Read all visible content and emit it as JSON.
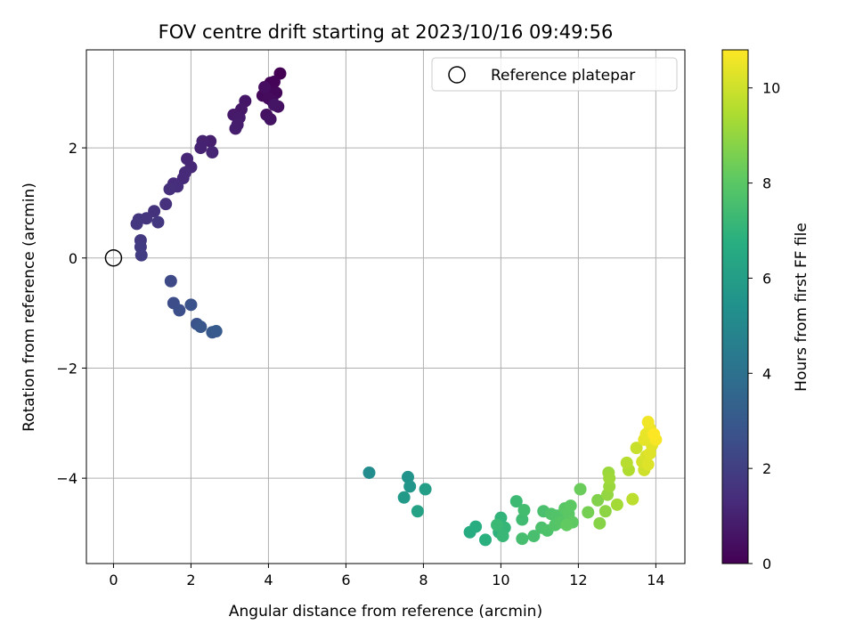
{
  "chart_data": {
    "type": "scatter",
    "title": "FOV centre drift starting at 2023/10/16 09:49:56",
    "xlabel": "Angular distance from reference (arcmin)",
    "ylabel": "Rotation from reference (arcmin)",
    "xlim": [
      -0.7,
      14.75
    ],
    "ylim": [
      -5.55,
      3.78
    ],
    "xticks": [
      0,
      2,
      4,
      6,
      8,
      10,
      12,
      14
    ],
    "yticks": [
      -4,
      -2,
      0,
      2
    ],
    "grid": true,
    "legend": {
      "placement": "top-right",
      "entries": [
        "Reference platepar"
      ]
    },
    "colorbar": {
      "label": "Hours from first FF file",
      "range": [
        0,
        10.8
      ],
      "ticks": [
        0,
        2,
        4,
        6,
        8,
        10
      ],
      "colormap": "viridis"
    },
    "reference_point": {
      "x": 0,
      "y": 0
    },
    "series": [
      {
        "values": [
          {
            "x": 4.3,
            "y": 3.35,
            "c": 0.0
          },
          {
            "x": 4.05,
            "y": 3.18,
            "c": 0.05
          },
          {
            "x": 4.15,
            "y": 3.2,
            "c": 0.1
          },
          {
            "x": 3.95,
            "y": 3.05,
            "c": 0.15
          },
          {
            "x": 4.2,
            "y": 3.0,
            "c": 0.2
          },
          {
            "x": 3.85,
            "y": 2.95,
            "c": 0.25
          },
          {
            "x": 4.0,
            "y": 2.9,
            "c": 0.3
          },
          {
            "x": 4.1,
            "y": 2.85,
            "c": 0.35
          },
          {
            "x": 3.9,
            "y": 3.1,
            "c": 0.4
          },
          {
            "x": 4.25,
            "y": 2.75,
            "c": 0.45
          },
          {
            "x": 3.95,
            "y": 2.6,
            "c": 0.5
          },
          {
            "x": 4.05,
            "y": 2.52,
            "c": 0.55
          },
          {
            "x": 4.15,
            "y": 2.78,
            "c": 0.6
          },
          {
            "x": 3.4,
            "y": 2.85,
            "c": 0.65
          },
          {
            "x": 3.3,
            "y": 2.7,
            "c": 0.7
          },
          {
            "x": 3.1,
            "y": 2.6,
            "c": 0.75
          },
          {
            "x": 3.25,
            "y": 2.55,
            "c": 0.8
          },
          {
            "x": 3.2,
            "y": 2.42,
            "c": 0.85
          },
          {
            "x": 3.15,
            "y": 2.35,
            "c": 0.9
          },
          {
            "x": 2.5,
            "y": 2.12,
            "c": 0.95
          },
          {
            "x": 2.3,
            "y": 2.12,
            "c": 1.0
          },
          {
            "x": 2.25,
            "y": 2.0,
            "c": 1.05
          },
          {
            "x": 2.55,
            "y": 1.92,
            "c": 1.1
          },
          {
            "x": 1.9,
            "y": 1.8,
            "c": 1.15
          },
          {
            "x": 2.0,
            "y": 1.65,
            "c": 1.2
          },
          {
            "x": 1.85,
            "y": 1.55,
            "c": 1.25
          },
          {
            "x": 1.8,
            "y": 1.45,
            "c": 1.3
          },
          {
            "x": 1.55,
            "y": 1.35,
            "c": 1.35
          },
          {
            "x": 1.65,
            "y": 1.3,
            "c": 1.4
          },
          {
            "x": 1.45,
            "y": 1.25,
            "c": 1.45
          },
          {
            "x": 1.35,
            "y": 0.98,
            "c": 1.5
          },
          {
            "x": 1.05,
            "y": 0.85,
            "c": 1.55
          },
          {
            "x": 0.85,
            "y": 0.72,
            "c": 1.6
          },
          {
            "x": 0.65,
            "y": 0.7,
            "c": 1.65
          },
          {
            "x": 0.6,
            "y": 0.62,
            "c": 1.7
          },
          {
            "x": 1.15,
            "y": 0.65,
            "c": 1.75
          },
          {
            "x": 0.7,
            "y": 0.32,
            "c": 1.8
          },
          {
            "x": 0.7,
            "y": 0.2,
            "c": 1.85
          },
          {
            "x": 0.72,
            "y": 0.05,
            "c": 1.9
          },
          {
            "x": 1.48,
            "y": -0.42,
            "c": 2.4
          },
          {
            "x": 1.55,
            "y": -0.82,
            "c": 2.5
          },
          {
            "x": 1.7,
            "y": -0.95,
            "c": 2.6
          },
          {
            "x": 2.0,
            "y": -0.85,
            "c": 2.7
          },
          {
            "x": 2.15,
            "y": -1.2,
            "c": 2.8
          },
          {
            "x": 2.25,
            "y": -1.25,
            "c": 2.9
          },
          {
            "x": 2.55,
            "y": -1.35,
            "c": 3.0
          },
          {
            "x": 2.65,
            "y": -1.33,
            "c": 3.1
          },
          {
            "x": 6.6,
            "y": -3.9,
            "c": 5.2
          },
          {
            "x": 7.6,
            "y": -3.98,
            "c": 5.5
          },
          {
            "x": 7.65,
            "y": -4.15,
            "c": 5.6
          },
          {
            "x": 7.5,
            "y": -4.35,
            "c": 5.8
          },
          {
            "x": 8.05,
            "y": -4.2,
            "c": 6.0
          },
          {
            "x": 7.85,
            "y": -4.6,
            "c": 6.2
          },
          {
            "x": 9.2,
            "y": -4.98,
            "c": 6.6
          },
          {
            "x": 9.35,
            "y": -4.88,
            "c": 6.7
          },
          {
            "x": 9.6,
            "y": -5.12,
            "c": 6.8
          },
          {
            "x": 9.95,
            "y": -4.98,
            "c": 6.9
          },
          {
            "x": 10.0,
            "y": -4.72,
            "c": 7.0
          },
          {
            "x": 10.1,
            "y": -4.9,
            "c": 7.1
          },
          {
            "x": 10.05,
            "y": -5.05,
            "c": 7.2
          },
          {
            "x": 9.9,
            "y": -4.85,
            "c": 7.25
          },
          {
            "x": 10.4,
            "y": -4.42,
            "c": 7.3
          },
          {
            "x": 10.55,
            "y": -4.75,
            "c": 7.4
          },
          {
            "x": 10.6,
            "y": -4.58,
            "c": 7.45
          },
          {
            "x": 10.55,
            "y": -5.1,
            "c": 7.5
          },
          {
            "x": 10.85,
            "y": -5.05,
            "c": 7.55
          },
          {
            "x": 11.1,
            "y": -4.6,
            "c": 7.6
          },
          {
            "x": 11.05,
            "y": -4.9,
            "c": 7.65
          },
          {
            "x": 11.2,
            "y": -4.95,
            "c": 7.7
          },
          {
            "x": 11.3,
            "y": -4.65,
            "c": 7.75
          },
          {
            "x": 11.45,
            "y": -4.68,
            "c": 7.8
          },
          {
            "x": 11.4,
            "y": -4.85,
            "c": 7.85
          },
          {
            "x": 11.55,
            "y": -4.8,
            "c": 7.9
          },
          {
            "x": 11.65,
            "y": -4.55,
            "c": 7.95
          },
          {
            "x": 11.75,
            "y": -4.65,
            "c": 8.0
          },
          {
            "x": 11.8,
            "y": -4.5,
            "c": 8.05
          },
          {
            "x": 11.85,
            "y": -4.8,
            "c": 8.1
          },
          {
            "x": 11.7,
            "y": -4.85,
            "c": 8.15
          },
          {
            "x": 12.05,
            "y": -4.2,
            "c": 8.3
          },
          {
            "x": 12.25,
            "y": -4.62,
            "c": 8.5
          },
          {
            "x": 12.5,
            "y": -4.4,
            "c": 8.7
          },
          {
            "x": 12.55,
            "y": -4.82,
            "c": 8.8
          },
          {
            "x": 12.7,
            "y": -4.6,
            "c": 8.9
          },
          {
            "x": 12.75,
            "y": -4.3,
            "c": 9.0
          },
          {
            "x": 12.8,
            "y": -4.15,
            "c": 9.1
          },
          {
            "x": 12.78,
            "y": -3.9,
            "c": 9.15
          },
          {
            "x": 12.8,
            "y": -4.0,
            "c": 9.2
          },
          {
            "x": 13.0,
            "y": -4.48,
            "c": 9.3
          },
          {
            "x": 13.3,
            "y": -3.85,
            "c": 9.5
          },
          {
            "x": 13.25,
            "y": -3.72,
            "c": 9.6
          },
          {
            "x": 13.4,
            "y": -4.38,
            "c": 9.7
          },
          {
            "x": 13.5,
            "y": -3.45,
            "c": 9.9
          },
          {
            "x": 13.7,
            "y": -3.85,
            "c": 10.0
          },
          {
            "x": 13.65,
            "y": -3.7,
            "c": 10.1
          },
          {
            "x": 13.75,
            "y": -3.6,
            "c": 10.2
          },
          {
            "x": 13.8,
            "y": -3.75,
            "c": 10.25
          },
          {
            "x": 13.85,
            "y": -3.55,
            "c": 10.3
          },
          {
            "x": 13.9,
            "y": -3.4,
            "c": 10.35
          },
          {
            "x": 13.7,
            "y": -3.3,
            "c": 10.4
          },
          {
            "x": 13.75,
            "y": -3.2,
            "c": 10.45
          },
          {
            "x": 13.85,
            "y": -3.1,
            "c": 10.5
          },
          {
            "x": 13.8,
            "y": -2.98,
            "c": 10.6
          },
          {
            "x": 14.0,
            "y": -3.3,
            "c": 10.7
          },
          {
            "x": 13.95,
            "y": -3.2,
            "c": 10.8
          }
        ]
      }
    ]
  }
}
